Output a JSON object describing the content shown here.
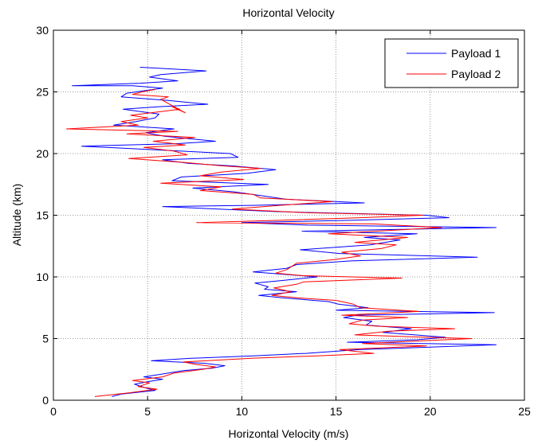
{
  "chart_data": {
    "type": "line",
    "title": "Horizontal Velocity",
    "xlabel": "Horizontal Velocity (m/s)",
    "ylabel": "Altitude (km)",
    "xlim": [
      0,
      25
    ],
    "ylim": [
      0,
      30
    ],
    "xticks": [
      0,
      5,
      10,
      15,
      20,
      25
    ],
    "yticks": [
      0,
      5,
      10,
      15,
      20,
      25,
      30
    ],
    "grid": true,
    "legend_position": "top-right",
    "series": [
      {
        "name": "Payload 1",
        "color": "#0000ff",
        "points": [
          [
            3.1,
            0.3
          ],
          [
            3.6,
            0.5
          ],
          [
            4.2,
            0.6
          ],
          [
            5.4,
            0.8
          ],
          [
            4.9,
            1.0
          ],
          [
            4.3,
            1.3
          ],
          [
            5.0,
            1.5
          ],
          [
            5.8,
            1.7
          ],
          [
            4.8,
            1.9
          ],
          [
            5.7,
            2.1
          ],
          [
            6.9,
            2.4
          ],
          [
            8.4,
            2.6
          ],
          [
            9.1,
            2.8
          ],
          [
            8.0,
            3.0
          ],
          [
            5.2,
            3.2
          ],
          [
            7.3,
            3.4
          ],
          [
            10.6,
            3.6
          ],
          [
            13.4,
            3.8
          ],
          [
            16.2,
            4.1
          ],
          [
            23.5,
            4.5
          ],
          [
            15.6,
            4.7
          ],
          [
            19.3,
            4.9
          ],
          [
            20.8,
            5.1
          ],
          [
            19.2,
            5.3
          ],
          [
            17.5,
            5.5
          ],
          [
            19.0,
            5.8
          ],
          [
            16.6,
            6.1
          ],
          [
            16.9,
            6.4
          ],
          [
            15.4,
            6.7
          ],
          [
            16.1,
            6.9
          ],
          [
            23.4,
            7.1
          ],
          [
            15.0,
            7.3
          ],
          [
            16.7,
            7.5
          ],
          [
            15.1,
            7.8
          ],
          [
            14.6,
            8.0
          ],
          [
            12.2,
            8.3
          ],
          [
            10.9,
            8.5
          ],
          [
            12.9,
            8.8
          ],
          [
            11.2,
            9.0
          ],
          [
            11.4,
            9.2
          ],
          [
            10.7,
            9.5
          ],
          [
            12.1,
            9.7
          ],
          [
            14.0,
            10.0
          ],
          [
            10.6,
            10.4
          ],
          [
            12.4,
            10.7
          ],
          [
            12.9,
            11.0
          ],
          [
            15.8,
            11.3
          ],
          [
            22.5,
            11.6
          ],
          [
            15.2,
            11.9
          ],
          [
            13.1,
            12.2
          ],
          [
            16.8,
            12.6
          ],
          [
            18.4,
            13.0
          ],
          [
            16.5,
            13.2
          ],
          [
            19.3,
            13.5
          ],
          [
            13.2,
            13.7
          ],
          [
            23.5,
            14.0
          ],
          [
            13.5,
            14.2
          ],
          [
            10.0,
            14.4
          ],
          [
            16.0,
            14.6
          ],
          [
            21.0,
            14.8
          ],
          [
            19.8,
            15.0
          ],
          [
            14.2,
            15.2
          ],
          [
            11.8,
            15.3
          ],
          [
            5.8,
            15.7
          ],
          [
            10.5,
            15.8
          ],
          [
            16.5,
            16.0
          ],
          [
            12.3,
            16.3
          ],
          [
            11.0,
            16.6
          ],
          [
            9.6,
            16.9
          ],
          [
            7.4,
            17.2
          ],
          [
            11.4,
            17.5
          ],
          [
            6.3,
            17.8
          ],
          [
            6.8,
            18.1
          ],
          [
            10.3,
            18.4
          ],
          [
            11.8,
            18.7
          ],
          [
            9.5,
            19.0
          ],
          [
            7.2,
            19.2
          ],
          [
            5.8,
            19.5
          ],
          [
            9.8,
            19.7
          ],
          [
            9.4,
            20.0
          ],
          [
            5.5,
            20.3
          ],
          [
            1.5,
            20.6
          ],
          [
            6.5,
            20.8
          ],
          [
            8.6,
            21.0
          ],
          [
            5.9,
            21.4
          ],
          [
            4.9,
            21.7
          ],
          [
            6.4,
            22.0
          ],
          [
            3.2,
            22.3
          ],
          [
            4.4,
            22.6
          ],
          [
            5.4,
            22.9
          ],
          [
            5.6,
            23.2
          ],
          [
            3.7,
            23.6
          ],
          [
            5.6,
            23.8
          ],
          [
            8.2,
            24.0
          ],
          [
            6.1,
            24.3
          ],
          [
            3.6,
            24.6
          ],
          [
            3.9,
            24.9
          ],
          [
            5.8,
            25.3
          ],
          [
            4.2,
            25.5
          ],
          [
            1.0,
            25.5
          ],
          [
            4.6,
            25.7
          ],
          [
            6.6,
            25.9
          ],
          [
            5.1,
            26.2
          ],
          [
            5.7,
            26.4
          ],
          [
            8.1,
            26.7
          ],
          [
            4.6,
            27.0
          ]
        ]
      },
      {
        "name": "Payload 2",
        "color": "#ff0000",
        "points": [
          [
            2.2,
            0.3
          ],
          [
            3.4,
            0.5
          ],
          [
            4.0,
            0.6
          ],
          [
            5.5,
            0.9
          ],
          [
            4.5,
            1.1
          ],
          [
            5.1,
            1.4
          ],
          [
            4.2,
            1.6
          ],
          [
            5.8,
            1.9
          ],
          [
            6.4,
            2.2
          ],
          [
            7.9,
            2.5
          ],
          [
            8.6,
            2.7
          ],
          [
            7.6,
            2.9
          ],
          [
            6.9,
            3.1
          ],
          [
            10.5,
            3.4
          ],
          [
            14.0,
            3.6
          ],
          [
            17.0,
            3.8
          ],
          [
            15.2,
            4.1
          ],
          [
            19.8,
            4.4
          ],
          [
            16.4,
            4.6
          ],
          [
            22.2,
            5.0
          ],
          [
            19.8,
            5.1
          ],
          [
            16.0,
            5.3
          ],
          [
            17.8,
            5.6
          ],
          [
            21.3,
            5.8
          ],
          [
            17.2,
            6.0
          ],
          [
            15.7,
            6.2
          ],
          [
            16.4,
            6.5
          ],
          [
            18.8,
            6.7
          ],
          [
            15.3,
            6.9
          ],
          [
            19.4,
            7.2
          ],
          [
            16.3,
            7.5
          ],
          [
            15.9,
            7.8
          ],
          [
            15.0,
            8.1
          ],
          [
            13.0,
            8.3
          ],
          [
            11.6,
            8.5
          ],
          [
            12.6,
            8.8
          ],
          [
            11.7,
            9.1
          ],
          [
            12.9,
            9.4
          ],
          [
            13.3,
            9.6
          ],
          [
            18.5,
            9.9
          ],
          [
            13.2,
            10.1
          ],
          [
            11.8,
            10.3
          ],
          [
            12.4,
            10.6
          ],
          [
            12.9,
            11.1
          ],
          [
            14.9,
            11.4
          ],
          [
            16.3,
            11.7
          ],
          [
            15.3,
            12.0
          ],
          [
            17.4,
            12.3
          ],
          [
            18.2,
            12.6
          ],
          [
            16.0,
            12.8
          ],
          [
            18.8,
            13.2
          ],
          [
            14.6,
            13.5
          ],
          [
            20.6,
            14.0
          ],
          [
            17.0,
            14.3
          ],
          [
            7.6,
            14.4
          ],
          [
            12.2,
            14.6
          ],
          [
            16.3,
            14.8
          ],
          [
            19.6,
            15.0
          ],
          [
            13.5,
            15.2
          ],
          [
            9.5,
            15.5
          ],
          [
            12.0,
            15.8
          ],
          [
            14.8,
            16.1
          ],
          [
            11.0,
            16.4
          ],
          [
            10.6,
            16.7
          ],
          [
            7.8,
            17.0
          ],
          [
            8.9,
            17.3
          ],
          [
            5.7,
            17.6
          ],
          [
            10.1,
            17.9
          ],
          [
            7.8,
            18.2
          ],
          [
            8.9,
            18.5
          ],
          [
            11.0,
            18.8
          ],
          [
            9.0,
            19.0
          ],
          [
            6.8,
            19.3
          ],
          [
            4.0,
            19.6
          ],
          [
            7.1,
            19.9
          ],
          [
            6.4,
            20.2
          ],
          [
            4.8,
            20.5
          ],
          [
            7.0,
            20.7
          ],
          [
            5.3,
            21.0
          ],
          [
            7.5,
            21.3
          ],
          [
            3.9,
            21.6
          ],
          [
            6.6,
            21.8
          ],
          [
            0.7,
            22.0
          ],
          [
            4.5,
            22.3
          ],
          [
            3.6,
            22.6
          ],
          [
            5.0,
            22.9
          ],
          [
            4.1,
            23.1
          ],
          [
            5.7,
            23.4
          ],
          [
            6.7,
            23.6
          ],
          [
            6.3,
            23.8
          ],
          [
            7.0,
            23.3
          ],
          [
            5.7,
            24.4
          ],
          [
            6.1,
            24.6
          ],
          [
            4.2,
            24.8
          ],
          [
            4.7,
            25.0
          ],
          [
            5.4,
            25.2
          ]
        ]
      }
    ]
  }
}
